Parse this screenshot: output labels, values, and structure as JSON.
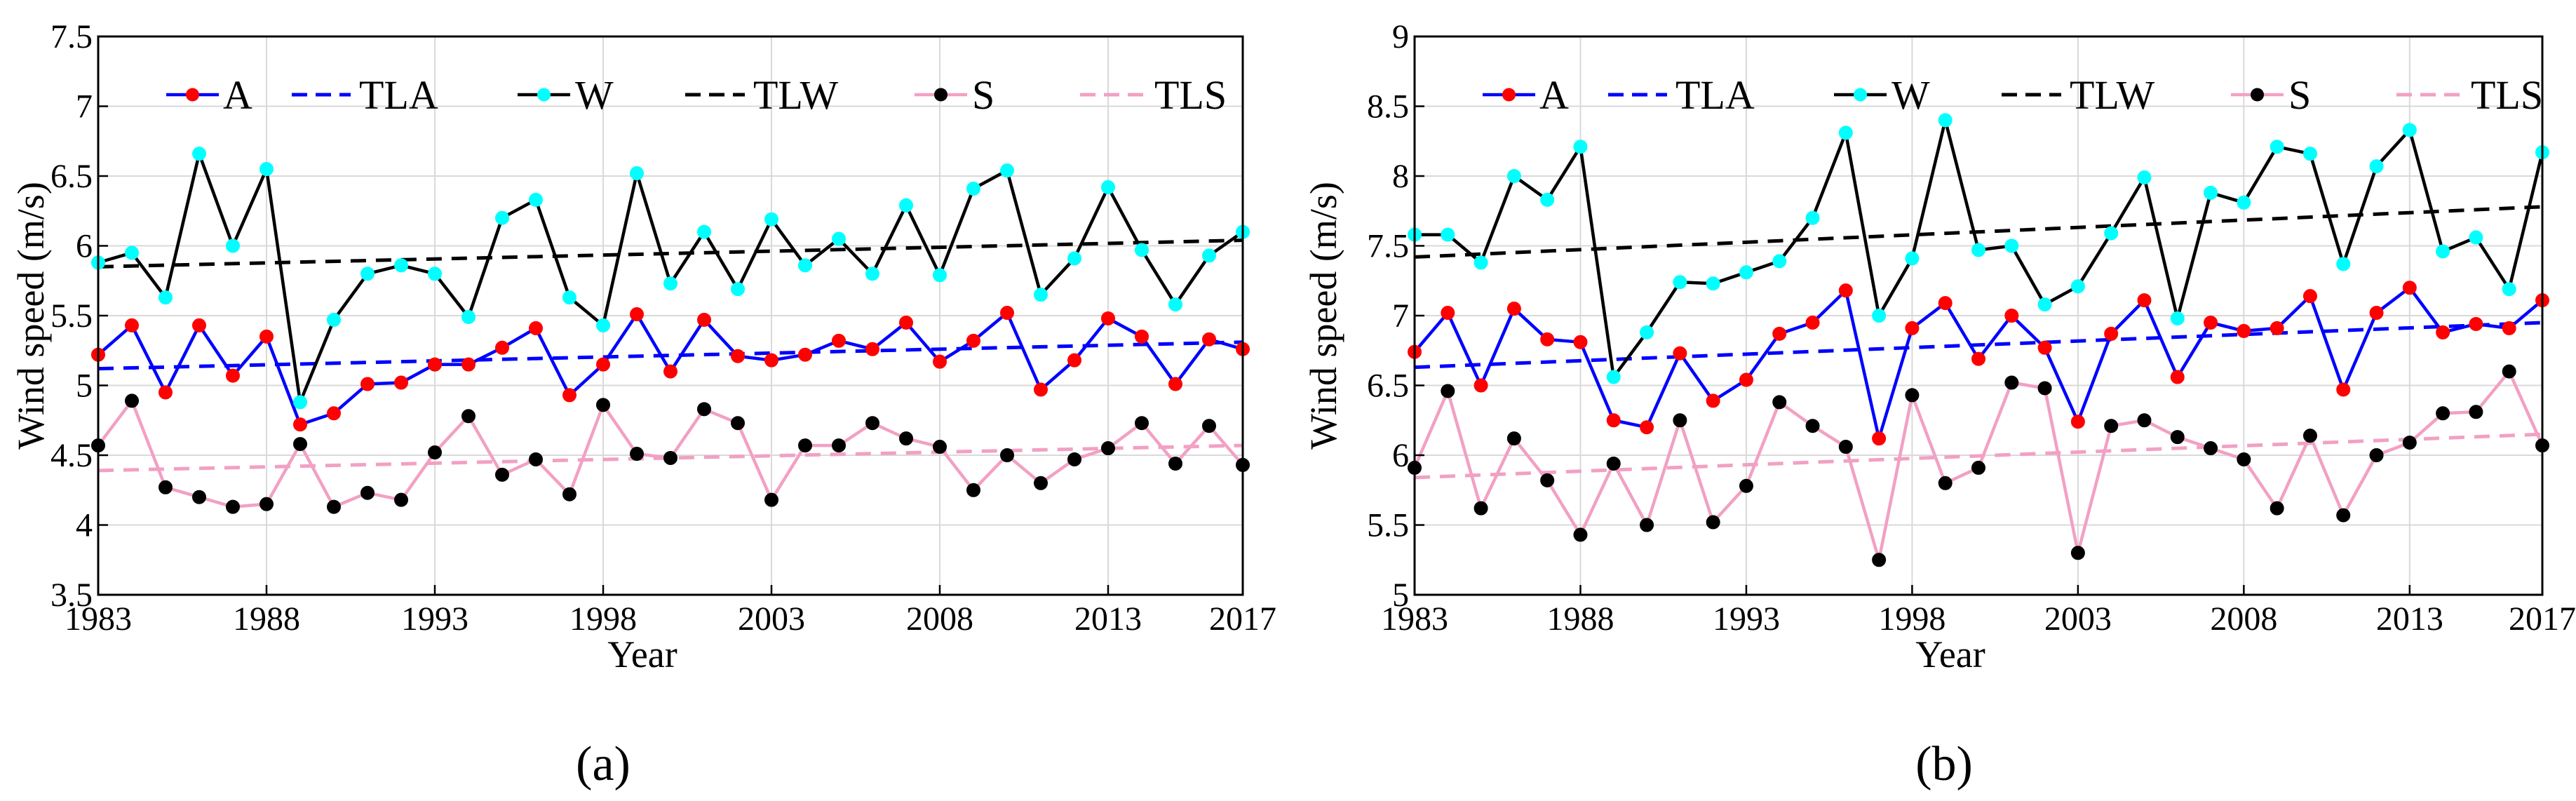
{
  "chart_data": [
    {
      "type": "line",
      "panel_label": "(a)",
      "xlabel": "Year",
      "ylabel": "Wind speed (m/s)",
      "xlim": [
        1983,
        2017
      ],
      "ylim": [
        3.5,
        7.5
      ],
      "x_ticks": [
        1983,
        1988,
        1993,
        1998,
        2003,
        2008,
        2013,
        2017
      ],
      "y_ticks": [
        "3.5",
        "4",
        "4.5",
        "5",
        "5.5",
        "6",
        "6.5",
        "7",
        "7.5"
      ],
      "grid": true,
      "legend": {
        "placement": "top",
        "entries": [
          "A",
          "TLA",
          "W",
          "TLW",
          "S",
          "TLS"
        ]
      },
      "x": [
        1983,
        1984,
        1985,
        1986,
        1987,
        1988,
        1989,
        1990,
        1991,
        1992,
        1993,
        1994,
        1995,
        1996,
        1997,
        1998,
        1999,
        2000,
        2001,
        2002,
        2003,
        2004,
        2005,
        2006,
        2007,
        2008,
        2009,
        2010,
        2011,
        2012,
        2013,
        2014,
        2015,
        2016,
        2017
      ],
      "series": [
        {
          "name": "A",
          "kind": "data",
          "line_color": "#0000ff",
          "marker_color": "#ff0000",
          "values": [
            5.22,
            5.43,
            4.95,
            5.43,
            5.07,
            5.35,
            4.72,
            4.8,
            5.01,
            5.02,
            5.15,
            5.15,
            5.27,
            5.41,
            4.93,
            5.15,
            5.51,
            5.1,
            5.47,
            5.21,
            5.18,
            5.22,
            5.32,
            5.26,
            5.45,
            5.17,
            5.32,
            5.52,
            4.97,
            5.18,
            5.48,
            5.35,
            5.01,
            5.33,
            5.26
          ]
        },
        {
          "name": "TLA",
          "kind": "trend",
          "line_color": "#0000ff",
          "values_at_ends": [
            5.12,
            5.31
          ]
        },
        {
          "name": "W",
          "kind": "data",
          "line_color": "#000000",
          "marker_color": "#00ffff",
          "values": [
            5.88,
            5.95,
            5.63,
            6.66,
            6.0,
            6.55,
            4.88,
            5.47,
            5.8,
            5.86,
            5.8,
            5.49,
            6.2,
            6.33,
            5.63,
            5.43,
            6.52,
            5.73,
            6.1,
            5.69,
            6.19,
            5.86,
            6.05,
            5.8,
            6.29,
            5.79,
            6.41,
            6.54,
            5.65,
            5.91,
            6.42,
            5.97,
            5.58,
            5.93,
            6.1
          ]
        },
        {
          "name": "TLW",
          "kind": "trend",
          "line_color": "#000000",
          "values_at_ends": [
            5.85,
            6.04
          ]
        },
        {
          "name": "S",
          "kind": "data",
          "line_color": "#f2a0c4",
          "marker_color": "#000000",
          "values": [
            4.57,
            4.89,
            4.27,
            4.2,
            4.13,
            4.15,
            4.58,
            4.13,
            4.23,
            4.18,
            4.52,
            4.78,
            4.36,
            4.47,
            4.22,
            4.86,
            4.51,
            4.48,
            4.83,
            4.73,
            4.18,
            4.57,
            4.57,
            4.73,
            4.62,
            4.56,
            4.25,
            4.5,
            4.3,
            4.47,
            4.55,
            4.73,
            4.44,
            4.71,
            4.43
          ]
        },
        {
          "name": "TLS",
          "kind": "trend",
          "line_color": "#f2a0c4",
          "values_at_ends": [
            4.39,
            4.57
          ]
        }
      ]
    },
    {
      "type": "line",
      "panel_label": "(b)",
      "xlabel": "Year",
      "ylabel": "Wind speed (m/s)",
      "xlim": [
        1983,
        2017
      ],
      "ylim": [
        5,
        9
      ],
      "x_ticks": [
        1983,
        1988,
        1993,
        1998,
        2003,
        2008,
        2013,
        2017
      ],
      "y_ticks": [
        "5",
        "5.5",
        "6",
        "6.5",
        "7",
        "7.5",
        "8",
        "8.5",
        "9"
      ],
      "grid": true,
      "legend": {
        "placement": "top",
        "entries": [
          "A",
          "TLA",
          "W",
          "TLW",
          "S",
          "TLS"
        ]
      },
      "x": [
        1983,
        1984,
        1985,
        1986,
        1987,
        1988,
        1989,
        1990,
        1991,
        1992,
        1993,
        1994,
        1995,
        1996,
        1997,
        1998,
        1999,
        2000,
        2001,
        2002,
        2003,
        2004,
        2005,
        2006,
        2007,
        2008,
        2009,
        2010,
        2011,
        2012,
        2013,
        2014,
        2015,
        2016,
        2017
      ],
      "series": [
        {
          "name": "A",
          "kind": "data",
          "line_color": "#0000ff",
          "marker_color": "#ff0000",
          "values": [
            6.74,
            7.02,
            6.5,
            7.05,
            6.83,
            6.81,
            6.25,
            6.2,
            6.73,
            6.39,
            6.54,
            6.87,
            6.95,
            7.18,
            6.12,
            6.91,
            7.09,
            6.69,
            7.0,
            6.77,
            6.24,
            6.87,
            7.11,
            6.56,
            6.95,
            6.89,
            6.91,
            7.14,
            6.47,
            7.02,
            7.2,
            6.88,
            6.94,
            6.91,
            7.11
          ]
        },
        {
          "name": "TLA",
          "kind": "trend",
          "line_color": "#0000ff",
          "values_at_ends": [
            6.63,
            6.95
          ]
        },
        {
          "name": "W",
          "kind": "data",
          "line_color": "#000000",
          "marker_color": "#00ffff",
          "values": [
            7.58,
            7.58,
            7.38,
            8.0,
            7.83,
            8.21,
            6.56,
            6.88,
            7.24,
            7.23,
            7.31,
            7.39,
            7.7,
            8.31,
            7.0,
            7.41,
            8.4,
            7.47,
            7.5,
            7.08,
            7.21,
            7.59,
            7.99,
            6.98,
            7.88,
            7.81,
            8.21,
            8.16,
            7.37,
            8.07,
            8.33,
            7.46,
            7.56,
            7.19,
            8.17
          ]
        },
        {
          "name": "TLW",
          "kind": "trend",
          "line_color": "#000000",
          "values_at_ends": [
            7.42,
            7.78
          ]
        },
        {
          "name": "S",
          "kind": "data",
          "line_color": "#f2a0c4",
          "marker_color": "#000000",
          "values": [
            5.91,
            6.46,
            5.62,
            6.12,
            5.82,
            5.43,
            5.94,
            5.5,
            6.25,
            5.52,
            5.78,
            6.38,
            6.21,
            6.06,
            5.25,
            6.43,
            5.8,
            5.91,
            6.52,
            6.48,
            5.3,
            6.21,
            6.25,
            6.13,
            6.05,
            5.97,
            5.62,
            6.14,
            5.57,
            6.0,
            6.09,
            6.3,
            6.31,
            6.6,
            6.07
          ]
        },
        {
          "name": "TLS",
          "kind": "trend",
          "line_color": "#f2a0c4",
          "values_at_ends": [
            5.84,
            6.15
          ]
        }
      ]
    }
  ]
}
